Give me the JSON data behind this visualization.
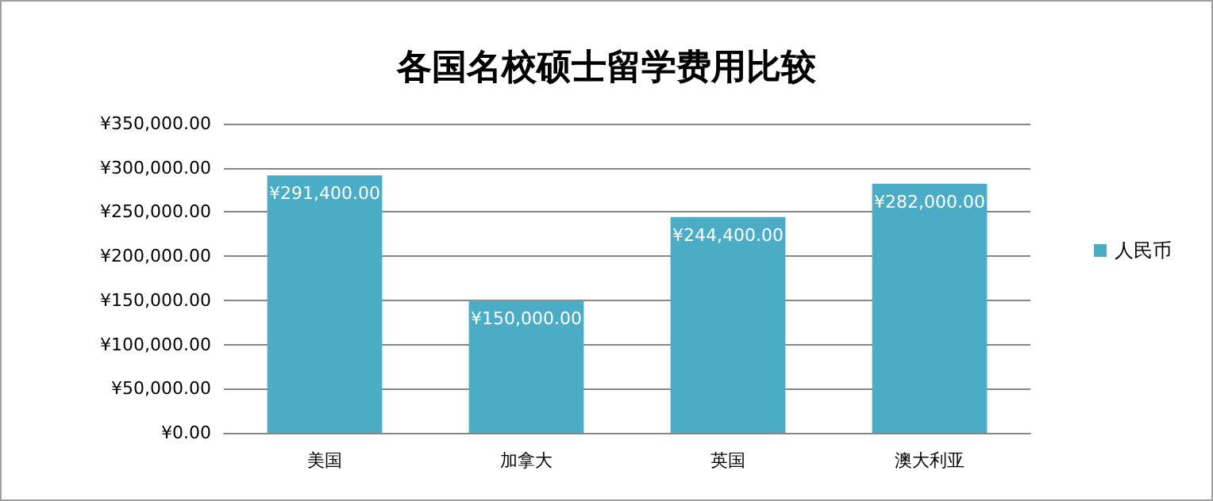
{
  "chart_data": {
    "type": "bar",
    "title": "各国名校硕士留学费用比较",
    "categories": [
      "美国",
      "加拿大",
      "英国",
      "澳大利亚"
    ],
    "series": [
      {
        "name": "人民币",
        "color": "#4bacc6",
        "values": [
          291400,
          150000,
          244400,
          282000
        ],
        "value_labels": [
          "¥291,400.00",
          "¥150,000.00",
          "¥244,400.00",
          "¥282,000.00"
        ]
      }
    ],
    "ylim": [
      0,
      350000
    ],
    "yticks": [
      {
        "value": 0,
        "label": "¥0.00"
      },
      {
        "value": 50000,
        "label": "¥50,000.00"
      },
      {
        "value": 100000,
        "label": "¥100,000.00"
      },
      {
        "value": 150000,
        "label": "¥150,000.00"
      },
      {
        "value": 200000,
        "label": "¥200,000.00"
      },
      {
        "value": 250000,
        "label": "¥250,000.00"
      },
      {
        "value": 300000,
        "label": "¥300,000.00"
      },
      {
        "value": 350000,
        "label": "¥350,000.00"
      }
    ],
    "grid": "y",
    "legend": "right"
  }
}
